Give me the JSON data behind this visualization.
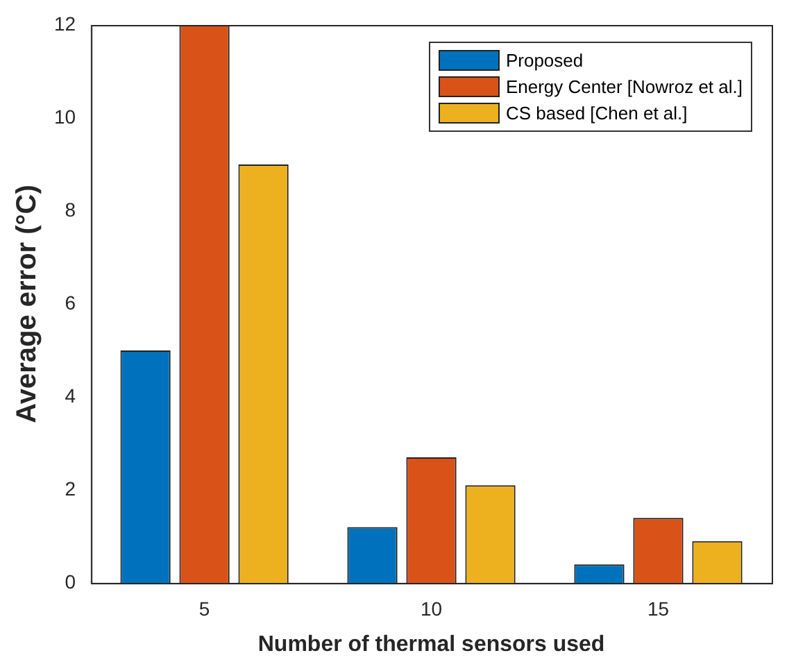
{
  "chart_data": {
    "type": "bar",
    "xlabel": "Number of thermal sensors used",
    "ylabel": "Average error (°C)",
    "categories": [
      "5",
      "10",
      "15"
    ],
    "series": [
      {
        "name": "Proposed",
        "color": "#0072bd",
        "values": [
          5,
          1.2,
          0.4
        ]
      },
      {
        "name": "Energy Center [Nowroz et al.]",
        "color": "#d95319",
        "values": [
          12,
          2.7,
          1.4
        ]
      },
      {
        "name": "CS based [Chen et al.]",
        "color": "#edb120",
        "values": [
          9,
          2.1,
          0.9
        ]
      }
    ],
    "ylim": [
      0,
      12
    ],
    "yticks": [
      0,
      2,
      4,
      6,
      8,
      10,
      12
    ],
    "grid": false,
    "legend": "top right"
  }
}
